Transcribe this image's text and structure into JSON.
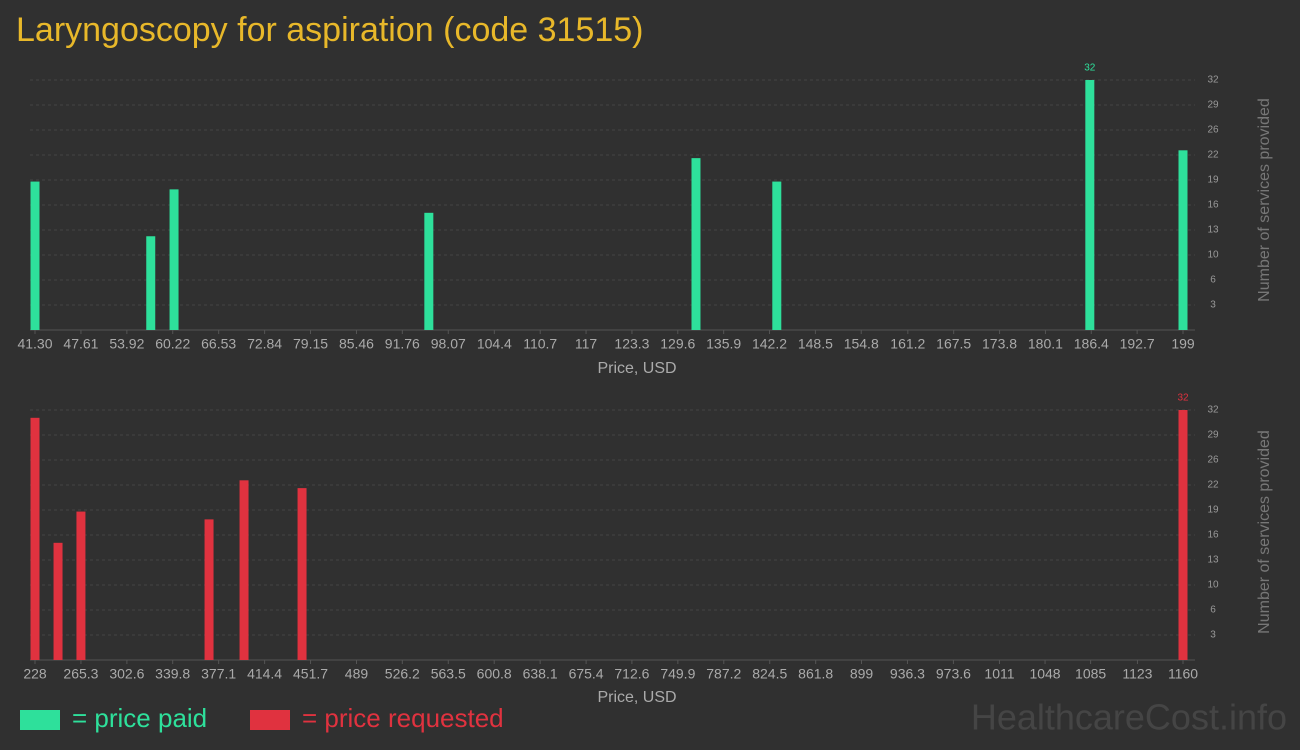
{
  "title": "Laryngoscopy for aspiration (code 31515)",
  "watermark": "HealthcareCost.info",
  "chart_data": [
    {
      "type": "bar",
      "x_label": "Price, USD",
      "y_label": "Number of services provided",
      "series": [
        {
          "name": "= price paid",
          "color": "#2ee09b",
          "x": [
            41.3,
            57.2,
            60.4,
            95.4,
            132.1,
            143.2,
            186.2,
            199
          ],
          "values": [
            19,
            12,
            18,
            15,
            22,
            19,
            32,
            23
          ]
        }
      ],
      "data_labels": "max",
      "xlim": [
        41.3,
        199
      ],
      "ylim": [
        0,
        32
      ],
      "xticks": [
        {
          "value": 41.3,
          "label": "41.30"
        },
        47.61,
        53.92,
        60.22,
        66.53,
        72.84,
        79.15,
        85.46,
        91.76,
        98.07,
        104.4,
        110.7,
        117,
        123.3,
        129.6,
        135.9,
        142.2,
        148.5,
        154.8,
        161.2,
        167.5,
        173.8,
        180.1,
        186.4,
        192.7,
        199
      ],
      "yticks": [
        {
          "value": 3.2,
          "label": "3"
        },
        {
          "value": 6.4,
          "label": "6"
        },
        {
          "value": 9.6,
          "label": "10"
        },
        {
          "value": 12.8,
          "label": "13"
        },
        16,
        {
          "value": 19.2,
          "label": "19"
        },
        {
          "value": 22.4,
          "label": "22"
        },
        {
          "value": 25.6,
          "label": "26"
        },
        {
          "value": 28.8,
          "label": "29"
        },
        32
      ],
      "grid": true
    },
    {
      "type": "bar",
      "x_label": "Price, USD",
      "y_label": "Number of services provided",
      "series": [
        {
          "name": "= price requested",
          "color": "#e0323f",
          "x": [
            228,
            246.7,
            265.3,
            369.3,
            397.7,
            444.8,
            1160
          ],
          "values": [
            31,
            15,
            19,
            18,
            23,
            22,
            32
          ]
        }
      ],
      "data_labels": "max",
      "xlim": [
        228,
        1160
      ],
      "ylim": [
        0,
        32
      ],
      "xticks": [
        228,
        265.3,
        302.6,
        339.8,
        377.1,
        414.4,
        451.7,
        489,
        526.2,
        563.5,
        600.8,
        638.1,
        675.4,
        712.6,
        749.9,
        787.2,
        824.5,
        861.8,
        899,
        936.3,
        973.6,
        1011,
        1048,
        1085,
        1123,
        1160
      ],
      "yticks": [
        {
          "value": 3.2,
          "label": "3"
        },
        {
          "value": 6.4,
          "label": "6"
        },
        {
          "value": 9.6,
          "label": "10"
        },
        {
          "value": 12.8,
          "label": "13"
        },
        16,
        {
          "value": 19.2,
          "label": "19"
        },
        {
          "value": 22.4,
          "label": "22"
        },
        {
          "value": 25.6,
          "label": "26"
        },
        {
          "value": 28.8,
          "label": "29"
        },
        32
      ],
      "grid": true
    }
  ]
}
